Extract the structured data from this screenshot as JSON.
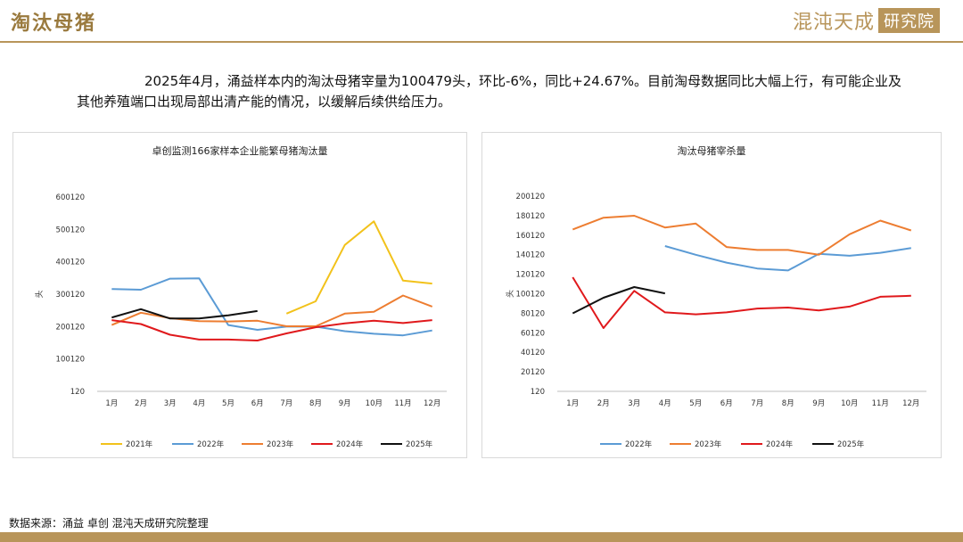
{
  "header": {
    "title": "淘汰母猪",
    "brand_main": "混沌天成",
    "brand_box": "研究院"
  },
  "summary": "2025年4月，涌益样本内的淘汰母猪宰量为100479头，环比-6%，同比+24.67%。目前淘母数据同比大幅上行，有可能企业及其他养殖端口出现局部出清产能的情况，以缓解后续供给压力。",
  "source": "数据来源：涌益 卓创 混沌天成研究院整理",
  "colors": {
    "brand": "#b8955a",
    "y2021": "#f2c21b",
    "y2022": "#5b9bd5",
    "y2023": "#ed7d31",
    "y2024": "#e0191c",
    "y2025": "#111111"
  },
  "chart_data": [
    {
      "type": "line",
      "title": "卓创监测166家样本企业能繁母猪淘汰量",
      "ylabel": "头",
      "xlabel": "",
      "categories": [
        "1月",
        "2月",
        "3月",
        "4月",
        "5月",
        "6月",
        "7月",
        "8月",
        "9月",
        "10月",
        "11月",
        "12月"
      ],
      "yticks": [
        120,
        100120,
        200120,
        300120,
        400120,
        500120,
        600120
      ],
      "ylim": [
        120,
        600120
      ],
      "grid": false,
      "legend": "bottom",
      "series": [
        {
          "name": "2021年",
          "color": "#f2c21b",
          "values": [
            null,
            null,
            null,
            null,
            null,
            null,
            240000,
            278000,
            452000,
            525000,
            342000,
            333000
          ]
        },
        {
          "name": "2022年",
          "color": "#5b9bd5",
          "values": [
            316000,
            314000,
            348000,
            349000,
            205000,
            190000,
            200000,
            200000,
            186000,
            178000,
            173000,
            188000
          ]
        },
        {
          "name": "2023年",
          "color": "#ed7d31",
          "values": [
            205000,
            243000,
            226000,
            217000,
            216000,
            218000,
            201000,
            201000,
            240000,
            246000,
            296000,
            262000
          ]
        },
        {
          "name": "2024年",
          "color": "#e0191c",
          "values": [
            220000,
            208000,
            175000,
            160000,
            160000,
            157000,
            179000,
            198000,
            210000,
            218000,
            211000,
            220000
          ]
        },
        {
          "name": "2025年",
          "color": "#111111",
          "values": [
            228000,
            254000,
            225000,
            225000,
            235000,
            248000,
            null,
            null,
            null,
            null,
            null,
            null
          ]
        }
      ]
    },
    {
      "type": "line",
      "title": "淘汰母猪宰杀量",
      "ylabel": "头",
      "xlabel": "",
      "categories": [
        "1月",
        "2月",
        "3月",
        "4月",
        "5月",
        "6月",
        "7月",
        "8月",
        "9月",
        "10月",
        "11月",
        "12月"
      ],
      "yticks": [
        120,
        20120,
        40120,
        60120,
        80120,
        100120,
        120120,
        140120,
        160120,
        180120,
        200120
      ],
      "ylim": [
        120,
        200120
      ],
      "grid": false,
      "legend": "bottom",
      "series": [
        {
          "name": "2022年",
          "color": "#5b9bd5",
          "values": [
            null,
            null,
            null,
            149000,
            140000,
            132000,
            126000,
            124000,
            141000,
            139000,
            142000,
            147000
          ]
        },
        {
          "name": "2023年",
          "color": "#ed7d31",
          "values": [
            166000,
            178000,
            180000,
            168000,
            172000,
            148000,
            145000,
            145000,
            140000,
            161000,
            175000,
            165000
          ]
        },
        {
          "name": "2024年",
          "color": "#e0191c",
          "values": [
            117000,
            65000,
            103000,
            81000,
            79000,
            81000,
            85000,
            86000,
            83000,
            87000,
            97000,
            98000
          ]
        },
        {
          "name": "2025年",
          "color": "#111111",
          "values": [
            80000,
            96000,
            107000,
            100479,
            null,
            null,
            null,
            null,
            null,
            null,
            null,
            null
          ]
        }
      ]
    }
  ]
}
